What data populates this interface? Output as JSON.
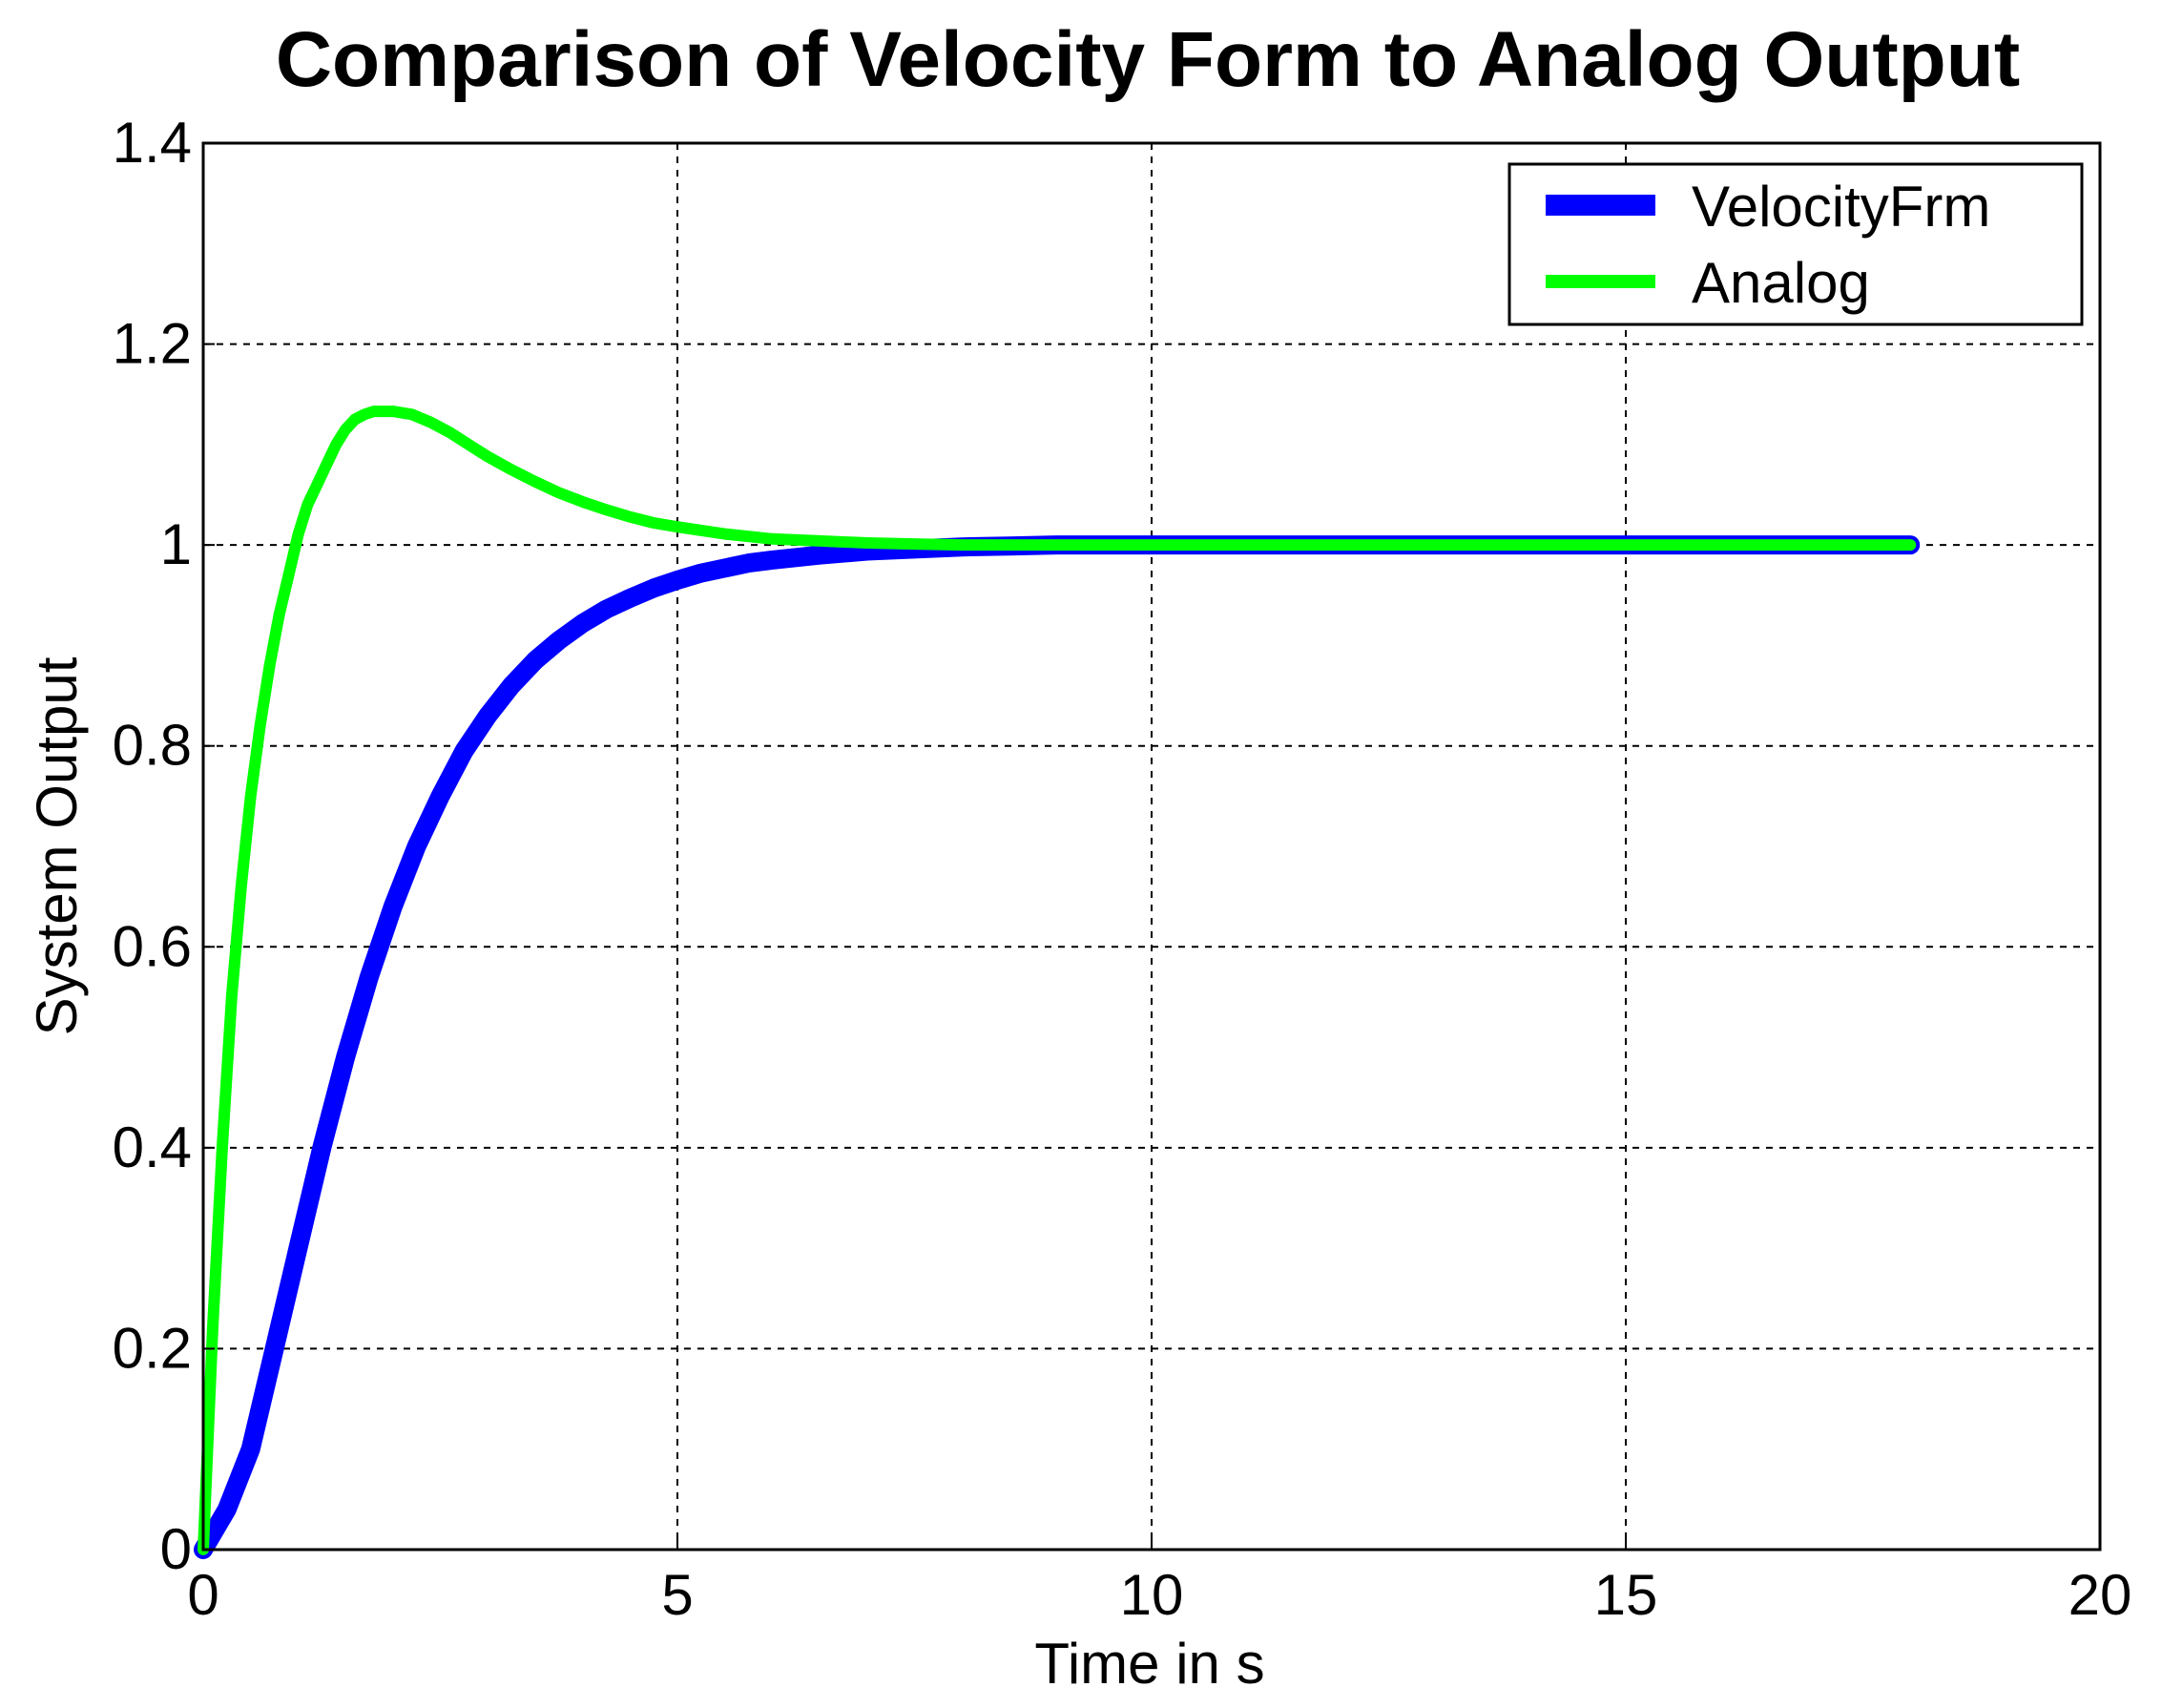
{
  "chart_data": {
    "type": "line",
    "title": "Comparison of Velocity Form to Analog Output",
    "xlabel": "Time in s",
    "ylabel": "System Output",
    "xlim": [
      0,
      20
    ],
    "ylim": [
      0,
      1.4
    ],
    "xticks": [
      0,
      5,
      10,
      15,
      20
    ],
    "xtick_labels": [
      "0",
      "5",
      "10",
      "15",
      "20"
    ],
    "yticks": [
      0,
      0.2,
      0.4,
      0.6,
      0.8,
      1,
      1.2,
      1.4
    ],
    "ytick_labels": [
      "0",
      "0.2",
      "0.4",
      "0.6",
      "0.8",
      "1",
      "1.2",
      "1.4"
    ],
    "grid": true,
    "legend_position": "top-right",
    "series": [
      {
        "name": "VelocityFrm",
        "color": "#0000ff",
        "x": [
          0,
          0.25,
          0.5,
          0.75,
          1,
          1.25,
          1.5,
          1.75,
          2,
          2.25,
          2.5,
          2.75,
          3,
          3.25,
          3.5,
          3.75,
          4,
          4.25,
          4.5,
          4.75,
          5,
          5.25,
          5.5,
          5.75,
          6,
          6.5,
          7,
          7.5,
          8,
          8.5,
          9,
          10,
          11,
          12,
          13,
          14,
          15,
          16,
          17,
          18
        ],
        "y": [
          0,
          0.04,
          0.1,
          0.2,
          0.3,
          0.4,
          0.49,
          0.57,
          0.64,
          0.7,
          0.75,
          0.795,
          0.83,
          0.86,
          0.885,
          0.905,
          0.922,
          0.936,
          0.947,
          0.957,
          0.965,
          0.972,
          0.977,
          0.982,
          0.985,
          0.99,
          0.994,
          0.996,
          0.998,
          0.999,
          1.0,
          1.0,
          1.0,
          1.0,
          1.0,
          1.0,
          1.0,
          1.0,
          1.0,
          1.0
        ]
      },
      {
        "name": "Analog",
        "color": "#00ff00",
        "x": [
          0,
          0.1,
          0.2,
          0.3,
          0.4,
          0.5,
          0.6,
          0.7,
          0.8,
          0.9,
          1.0,
          1.1,
          1.2,
          1.3,
          1.4,
          1.5,
          1.6,
          1.7,
          1.8,
          2.0,
          2.2,
          2.4,
          2.6,
          2.8,
          3.0,
          3.25,
          3.5,
          3.75,
          4.0,
          4.25,
          4.5,
          4.75,
          5.0,
          5.5,
          6.0,
          6.5,
          7.0,
          7.5,
          8.0,
          8.5,
          9.0,
          10,
          11,
          12,
          13,
          14,
          15,
          16,
          17,
          18
        ],
        "y": [
          0,
          0.22,
          0.4,
          0.55,
          0.66,
          0.75,
          0.82,
          0.88,
          0.93,
          0.97,
          1.01,
          1.04,
          1.06,
          1.08,
          1.1,
          1.115,
          1.125,
          1.13,
          1.133,
          1.133,
          1.13,
          1.122,
          1.112,
          1.1,
          1.088,
          1.075,
          1.063,
          1.052,
          1.043,
          1.035,
          1.028,
          1.022,
          1.018,
          1.011,
          1.006,
          1.004,
          1.002,
          1.001,
          1.0,
          1.0,
          1.0,
          1.0,
          1.0,
          1.0,
          1.0,
          1.0,
          1.0,
          1.0,
          1.0,
          1.0
        ]
      }
    ]
  }
}
